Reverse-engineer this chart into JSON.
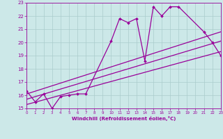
{
  "xlabel": "Windchill (Refroidissement éolien,°C)",
  "xlim": [
    0,
    23
  ],
  "ylim": [
    15,
    23
  ],
  "yticks": [
    15,
    16,
    17,
    18,
    19,
    20,
    21,
    22,
    23
  ],
  "xticks": [
    0,
    1,
    2,
    3,
    4,
    5,
    6,
    7,
    8,
    9,
    10,
    11,
    12,
    13,
    14,
    15,
    16,
    17,
    18,
    19,
    20,
    21,
    22,
    23
  ],
  "bg_color": "#cce8e8",
  "grid_color": "#aacccc",
  "line_color": "#990099",
  "line1_x": [
    0,
    1,
    2,
    3,
    4,
    5,
    6,
    7,
    10,
    11,
    12,
    13,
    14,
    15,
    16,
    17,
    18,
    21,
    22,
    23
  ],
  "line1_y": [
    16.3,
    15.5,
    16.1,
    15.0,
    15.9,
    16.0,
    16.1,
    16.1,
    20.1,
    21.8,
    21.5,
    21.8,
    18.6,
    22.7,
    22.0,
    22.7,
    22.7,
    20.8,
    20.0,
    19.0
  ],
  "line2_x": [
    0,
    23
  ],
  "line2_y": [
    16.1,
    20.8
  ],
  "line3_x": [
    0,
    23
  ],
  "line3_y": [
    15.7,
    20.1
  ],
  "line4_x": [
    0,
    23
  ],
  "line4_y": [
    15.3,
    19.3
  ]
}
